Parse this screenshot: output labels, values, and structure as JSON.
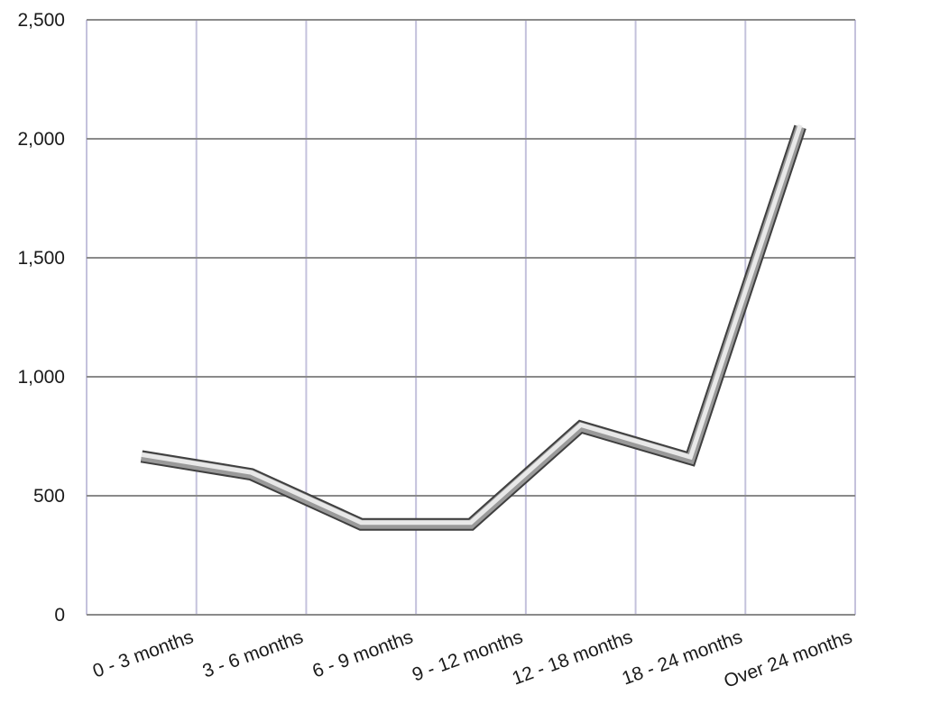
{
  "chart_data": {
    "type": "line",
    "title": "",
    "xlabel": "",
    "ylabel": "",
    "categories": [
      "0 - 3 months",
      "3 - 6 months",
      "6 - 9 months",
      "9 - 12 months",
      "12 - 18 months",
      "18 - 24 months",
      "Over 24 months"
    ],
    "series": [
      {
        "values": [
          665,
          590,
          380,
          380,
          790,
          655,
          2050
        ]
      }
    ],
    "ylim": [
      0,
      2500
    ],
    "yticks": [
      0,
      500,
      1000,
      1500,
      2000,
      2500
    ],
    "ytick_labels": [
      "0",
      "500",
      "1,000",
      "1,500",
      "2,000",
      "2,500"
    ],
    "grid": true,
    "legend": "none",
    "colors": {
      "gridline_horizontal": "#8a8a8a",
      "gridline_vertical": "#c4c2dc",
      "line_dark": "#3f3f3f",
      "line_light": "#e8e8e8",
      "line_mid": "#9a9a9a"
    }
  }
}
